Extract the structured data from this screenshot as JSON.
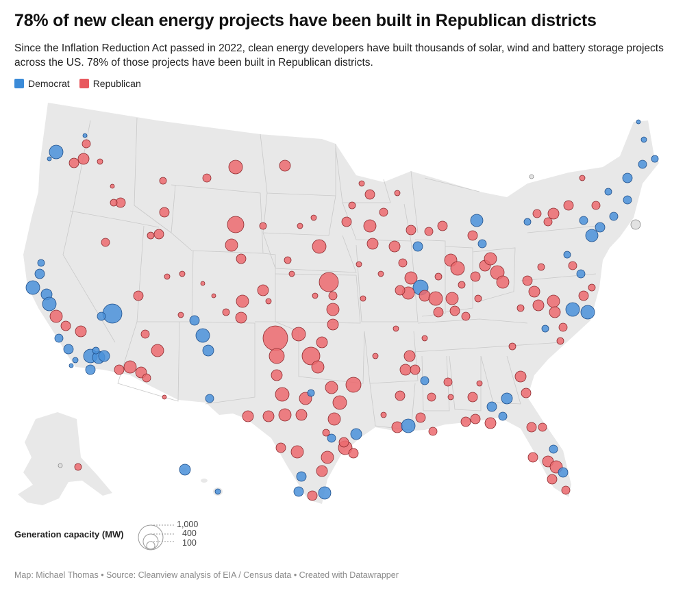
{
  "header": {
    "title": "78% of new clean energy projects have been built in Republican districts",
    "subtitle": "Since the Inflation Reduction Act passed in 2022, clean energy developers have built thousands of solar, wind and battery storage projects across the US. 78% of those projects have been built in Republican districts."
  },
  "legend": {
    "items": [
      {
        "label": "Democrat",
        "color": "#3b8bd8"
      },
      {
        "label": "Republican",
        "color": "#e8595e"
      }
    ]
  },
  "colors": {
    "land": "#e8e8e8",
    "borders": "#ffffff",
    "democrat_fill": "#4a90d9",
    "democrat_stroke": "#1f4f8a",
    "republican_fill": "#ec6a6e",
    "republican_stroke": "#8c2a2e",
    "other_fill": "#dddddd"
  },
  "size_key": {
    "title": "Generation capacity (MW)",
    "labels": [
      "1,000",
      "400",
      "100"
    ]
  },
  "footer": {
    "credit": "Map: Michael Thomas • Source: Cleanview analysis of EIA / Census data • Created with Datawrapper"
  }
}
